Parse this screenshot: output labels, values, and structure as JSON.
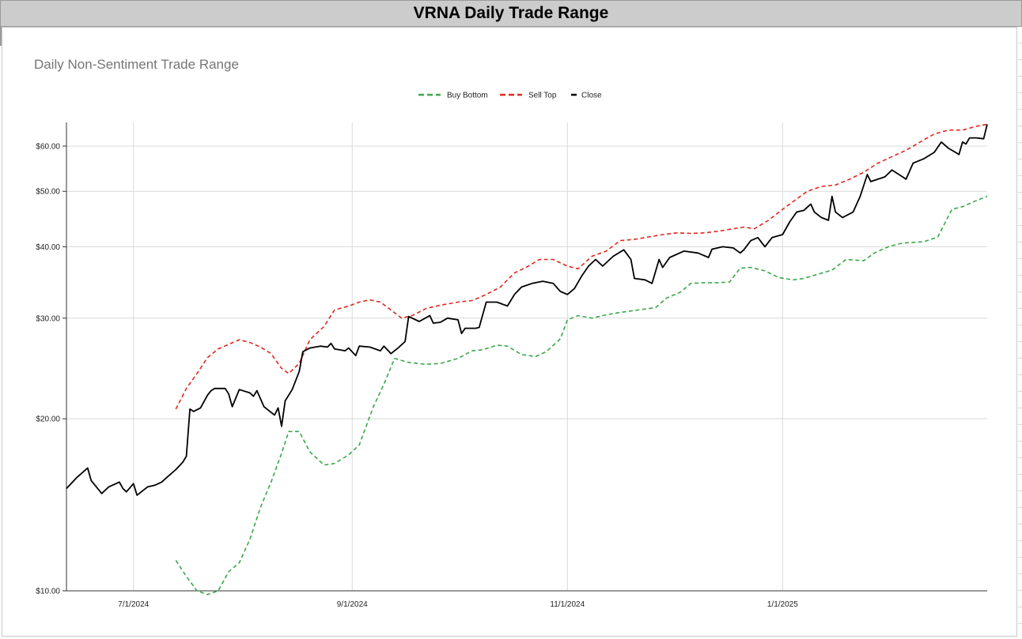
{
  "sheet": {
    "title": "VRNA Daily Trade Range"
  },
  "chart_data": {
    "type": "line",
    "subtitle": "Daily Non-Sentiment Trade Range",
    "y_scale": "log",
    "ylim": [
      10,
      66
    ],
    "y_ticks": [
      {
        "value": 10,
        "label": "$10.00"
      },
      {
        "value": 20,
        "label": "$20.00"
      },
      {
        "value": 30,
        "label": "$30.00"
      },
      {
        "value": 40,
        "label": "$40.00"
      },
      {
        "value": 50,
        "label": "$50.00"
      },
      {
        "value": 60,
        "label": "$60.00"
      }
    ],
    "x_range": [
      "2024-06-12",
      "2025-02-28"
    ],
    "x_ticks": [
      {
        "date": "2024-07-01",
        "label": "7/1/2024"
      },
      {
        "date": "2024-09-01",
        "label": "9/1/2024"
      },
      {
        "date": "2024-11-01",
        "label": "11/1/2024"
      },
      {
        "date": "2025-01-01",
        "label": "1/1/2025"
      }
    ],
    "grid": true,
    "legend_position": "top",
    "series": [
      {
        "name": "Buy Bottom",
        "color": "#3aa84a",
        "style": "dashed",
        "points": [
          [
            "2024-07-13",
            11.3
          ],
          [
            "2024-07-16",
            10.6
          ],
          [
            "2024-07-19",
            10.0
          ],
          [
            "2024-07-22",
            9.85
          ],
          [
            "2024-07-25",
            10.0
          ],
          [
            "2024-07-28",
            10.8
          ],
          [
            "2024-07-31",
            11.2
          ],
          [
            "2024-08-03",
            12.3
          ],
          [
            "2024-08-06",
            14.0
          ],
          [
            "2024-08-09",
            15.5
          ],
          [
            "2024-08-12",
            17.4
          ],
          [
            "2024-08-14",
            19.0
          ],
          [
            "2024-08-17",
            19.0
          ],
          [
            "2024-08-20",
            17.5
          ],
          [
            "2024-08-24",
            16.6
          ],
          [
            "2024-08-27",
            16.7
          ],
          [
            "2024-08-31",
            17.3
          ],
          [
            "2024-09-03",
            18.0
          ],
          [
            "2024-09-07",
            21.0
          ],
          [
            "2024-09-10",
            23.0
          ],
          [
            "2024-09-13",
            25.5
          ],
          [
            "2024-09-17",
            25.1
          ],
          [
            "2024-09-22",
            24.9
          ],
          [
            "2024-09-26",
            25.0
          ],
          [
            "2024-10-01",
            25.5
          ],
          [
            "2024-10-05",
            26.3
          ],
          [
            "2024-10-08",
            26.4
          ],
          [
            "2024-10-12",
            26.9
          ],
          [
            "2024-10-15",
            26.8
          ],
          [
            "2024-10-19",
            25.9
          ],
          [
            "2024-10-23",
            25.7
          ],
          [
            "2024-10-26",
            26.2
          ],
          [
            "2024-10-30",
            27.6
          ],
          [
            "2024-11-01",
            29.8
          ],
          [
            "2024-11-04",
            30.3
          ],
          [
            "2024-11-08",
            30.0
          ],
          [
            "2024-11-12",
            30.4
          ],
          [
            "2024-11-16",
            30.7
          ],
          [
            "2024-11-21",
            31.0
          ],
          [
            "2024-11-26",
            31.3
          ],
          [
            "2024-11-29",
            32.5
          ],
          [
            "2024-12-03",
            33.3
          ],
          [
            "2024-12-06",
            34.5
          ],
          [
            "2024-12-10",
            34.6
          ],
          [
            "2024-12-14",
            34.6
          ],
          [
            "2024-12-17",
            34.7
          ],
          [
            "2024-12-20",
            36.7
          ],
          [
            "2024-12-23",
            36.8
          ],
          [
            "2024-12-27",
            36.3
          ],
          [
            "2024-12-31",
            35.3
          ],
          [
            "2025-01-04",
            35.0
          ],
          [
            "2025-01-07",
            35.2
          ],
          [
            "2025-01-11",
            35.8
          ],
          [
            "2025-01-15",
            36.4
          ],
          [
            "2025-01-19",
            38.0
          ],
          [
            "2025-01-24",
            37.8
          ],
          [
            "2025-01-27",
            39.0
          ],
          [
            "2025-01-31",
            40.0
          ],
          [
            "2025-02-04",
            40.6
          ],
          [
            "2025-02-10",
            40.8
          ],
          [
            "2025-02-14",
            41.6
          ],
          [
            "2025-02-18",
            46.5
          ],
          [
            "2025-02-21",
            47.0
          ],
          [
            "2025-02-25",
            48.2
          ],
          [
            "2025-02-28",
            49.0
          ]
        ]
      },
      {
        "name": "Sell Top",
        "color": "#e0281f",
        "style": "dashed",
        "points": [
          [
            "2024-07-13",
            20.8
          ],
          [
            "2024-07-16",
            22.6
          ],
          [
            "2024-07-19",
            24.0
          ],
          [
            "2024-07-22",
            25.6
          ],
          [
            "2024-07-25",
            26.5
          ],
          [
            "2024-07-28",
            27.0
          ],
          [
            "2024-07-31",
            27.5
          ],
          [
            "2024-08-03",
            27.2
          ],
          [
            "2024-08-06",
            26.7
          ],
          [
            "2024-08-09",
            26.0
          ],
          [
            "2024-08-12",
            24.5
          ],
          [
            "2024-08-14",
            24.0
          ],
          [
            "2024-08-17",
            25.0
          ],
          [
            "2024-08-20",
            27.5
          ],
          [
            "2024-08-24",
            29.0
          ],
          [
            "2024-08-27",
            31.0
          ],
          [
            "2024-08-31",
            31.5
          ],
          [
            "2024-09-03",
            32.0
          ],
          [
            "2024-09-06",
            32.3
          ],
          [
            "2024-09-09",
            32.0
          ],
          [
            "2024-09-12",
            31.0
          ],
          [
            "2024-09-15",
            30.0
          ],
          [
            "2024-09-18",
            30.3
          ],
          [
            "2024-09-22",
            31.2
          ],
          [
            "2024-09-26",
            31.6
          ],
          [
            "2024-10-01",
            32.0
          ],
          [
            "2024-10-05",
            32.2
          ],
          [
            "2024-10-09",
            33.0
          ],
          [
            "2024-10-13",
            34.0
          ],
          [
            "2024-10-17",
            36.0
          ],
          [
            "2024-10-21",
            37.0
          ],
          [
            "2024-10-24",
            38.0
          ],
          [
            "2024-10-28",
            38.0
          ],
          [
            "2024-11-01",
            37.0
          ],
          [
            "2024-11-04",
            36.6
          ],
          [
            "2024-11-08",
            38.5
          ],
          [
            "2024-11-12",
            39.3
          ],
          [
            "2024-11-16",
            41.0
          ],
          [
            "2024-11-20",
            41.2
          ],
          [
            "2024-11-24",
            41.6
          ],
          [
            "2024-11-28",
            42.0
          ],
          [
            "2024-12-02",
            42.3
          ],
          [
            "2024-12-06",
            42.2
          ],
          [
            "2024-12-10",
            42.3
          ],
          [
            "2024-12-14",
            42.6
          ],
          [
            "2024-12-18",
            43.0
          ],
          [
            "2024-12-21",
            43.3
          ],
          [
            "2024-12-24",
            43.0
          ],
          [
            "2024-12-28",
            44.5
          ],
          [
            "2024-12-31",
            46.0
          ],
          [
            "2025-01-04",
            48.0
          ],
          [
            "2025-01-08",
            50.0
          ],
          [
            "2025-01-12",
            51.0
          ],
          [
            "2025-01-16",
            51.3
          ],
          [
            "2025-01-20",
            52.5
          ],
          [
            "2025-01-24",
            54.0
          ],
          [
            "2025-01-28",
            56.0
          ],
          [
            "2025-02-01",
            57.5
          ],
          [
            "2025-02-05",
            59.0
          ],
          [
            "2025-02-09",
            61.0
          ],
          [
            "2025-02-13",
            63.0
          ],
          [
            "2025-02-17",
            64.0
          ],
          [
            "2025-02-21",
            64.0
          ],
          [
            "2025-02-25",
            65.0
          ],
          [
            "2025-02-28",
            65.5
          ]
        ]
      },
      {
        "name": "Close",
        "color": "#000000",
        "style": "solid",
        "points": [
          [
            "2024-06-12",
            15.1
          ],
          [
            "2024-06-15",
            15.8
          ],
          [
            "2024-06-18",
            16.4
          ],
          [
            "2024-06-19",
            15.6
          ],
          [
            "2024-06-22",
            14.8
          ],
          [
            "2024-06-24",
            15.2
          ],
          [
            "2024-06-27",
            15.5
          ],
          [
            "2024-06-28",
            15.1
          ],
          [
            "2024-06-29",
            14.9
          ],
          [
            "2024-07-01",
            15.4
          ],
          [
            "2024-07-02",
            14.7
          ],
          [
            "2024-07-05",
            15.2
          ],
          [
            "2024-07-07",
            15.3
          ],
          [
            "2024-07-09",
            15.5
          ],
          [
            "2024-07-11",
            15.9
          ],
          [
            "2024-07-13",
            16.3
          ],
          [
            "2024-07-15",
            16.8
          ],
          [
            "2024-07-16",
            17.2
          ],
          [
            "2024-07-17",
            20.8
          ],
          [
            "2024-07-18",
            20.6
          ],
          [
            "2024-07-20",
            20.9
          ],
          [
            "2024-07-22",
            22.0
          ],
          [
            "2024-07-23",
            22.4
          ],
          [
            "2024-07-24",
            22.6
          ],
          [
            "2024-07-27",
            22.6
          ],
          [
            "2024-07-28",
            22.1
          ],
          [
            "2024-07-29",
            21.0
          ],
          [
            "2024-07-31",
            22.5
          ],
          [
            "2024-08-03",
            22.2
          ],
          [
            "2024-08-04",
            21.9
          ],
          [
            "2024-08-05",
            22.4
          ],
          [
            "2024-08-07",
            21.0
          ],
          [
            "2024-08-10",
            20.3
          ],
          [
            "2024-08-11",
            20.9
          ],
          [
            "2024-08-12",
            19.4
          ],
          [
            "2024-08-13",
            21.5
          ],
          [
            "2024-08-15",
            22.5
          ],
          [
            "2024-08-17",
            24.2
          ],
          [
            "2024-08-18",
            26.2
          ],
          [
            "2024-08-20",
            26.6
          ],
          [
            "2024-08-23",
            26.8
          ],
          [
            "2024-08-25",
            26.7
          ],
          [
            "2024-08-26",
            27.1
          ],
          [
            "2024-08-27",
            26.5
          ],
          [
            "2024-08-30",
            26.3
          ],
          [
            "2024-08-31",
            26.6
          ],
          [
            "2024-09-02",
            25.8
          ],
          [
            "2024-09-03",
            26.8
          ],
          [
            "2024-09-06",
            26.7
          ],
          [
            "2024-09-09",
            26.3
          ],
          [
            "2024-09-10",
            26.8
          ],
          [
            "2024-09-12",
            26.0
          ],
          [
            "2024-09-14",
            26.6
          ],
          [
            "2024-09-16",
            27.3
          ],
          [
            "2024-09-17",
            30.2
          ],
          [
            "2024-09-20",
            29.6
          ],
          [
            "2024-09-23",
            30.3
          ],
          [
            "2024-09-24",
            29.4
          ],
          [
            "2024-09-26",
            29.5
          ],
          [
            "2024-09-28",
            30.0
          ],
          [
            "2024-10-01",
            29.8
          ],
          [
            "2024-10-02",
            28.2
          ],
          [
            "2024-10-03",
            28.8
          ],
          [
            "2024-10-06",
            28.8
          ],
          [
            "2024-10-07",
            28.9
          ],
          [
            "2024-10-09",
            32.0
          ],
          [
            "2024-10-12",
            32.0
          ],
          [
            "2024-10-15",
            31.5
          ],
          [
            "2024-10-17",
            33.0
          ],
          [
            "2024-10-19",
            34.0
          ],
          [
            "2024-10-22",
            34.5
          ],
          [
            "2024-10-25",
            34.8
          ],
          [
            "2024-10-28",
            34.5
          ],
          [
            "2024-10-30",
            33.4
          ],
          [
            "2024-11-01",
            33.0
          ],
          [
            "2024-11-03",
            33.8
          ],
          [
            "2024-11-05",
            35.5
          ],
          [
            "2024-11-07",
            37.0
          ],
          [
            "2024-11-09",
            38.0
          ],
          [
            "2024-11-11",
            37.0
          ],
          [
            "2024-11-14",
            38.5
          ],
          [
            "2024-11-17",
            39.5
          ],
          [
            "2024-11-19",
            38.0
          ],
          [
            "2024-11-20",
            35.2
          ],
          [
            "2024-11-23",
            35.0
          ],
          [
            "2024-11-25",
            34.5
          ],
          [
            "2024-11-27",
            38.0
          ],
          [
            "2024-11-28",
            36.8
          ],
          [
            "2024-11-30",
            38.3
          ],
          [
            "2024-12-04",
            39.3
          ],
          [
            "2024-12-08",
            39.0
          ],
          [
            "2024-12-11",
            38.3
          ],
          [
            "2024-12-12",
            39.6
          ],
          [
            "2024-12-15",
            40.0
          ],
          [
            "2024-12-18",
            39.8
          ],
          [
            "2024-12-20",
            39.0
          ],
          [
            "2024-12-21",
            39.5
          ],
          [
            "2024-12-23",
            41.0
          ],
          [
            "2024-12-25",
            41.5
          ],
          [
            "2024-12-27",
            40.0
          ],
          [
            "2024-12-29",
            41.5
          ],
          [
            "2025-01-01",
            42.0
          ],
          [
            "2025-01-03",
            44.2
          ],
          [
            "2025-01-05",
            46.0
          ],
          [
            "2025-01-07",
            46.3
          ],
          [
            "2025-01-09",
            47.5
          ],
          [
            "2025-01-10",
            46.0
          ],
          [
            "2025-01-12",
            45.0
          ],
          [
            "2025-01-14",
            44.5
          ],
          [
            "2025-01-15",
            49.0
          ],
          [
            "2025-01-16",
            46.0
          ],
          [
            "2025-01-18",
            45.0
          ],
          [
            "2025-01-21",
            46.0
          ],
          [
            "2025-01-23",
            49.0
          ],
          [
            "2025-01-25",
            53.5
          ],
          [
            "2025-01-26",
            52.0
          ],
          [
            "2025-01-30",
            53.0
          ],
          [
            "2025-02-01",
            54.5
          ],
          [
            "2025-02-04",
            53.0
          ],
          [
            "2025-02-05",
            52.5
          ],
          [
            "2025-02-07",
            56.0
          ],
          [
            "2025-02-10",
            57.0
          ],
          [
            "2025-02-13",
            58.5
          ],
          [
            "2025-02-15",
            61.0
          ],
          [
            "2025-02-17",
            59.5
          ],
          [
            "2025-02-19",
            58.5
          ],
          [
            "2025-02-20",
            58.0
          ],
          [
            "2025-02-21",
            61.0
          ],
          [
            "2025-02-22",
            60.5
          ],
          [
            "2025-02-23",
            62.0
          ],
          [
            "2025-02-25",
            62.0
          ],
          [
            "2025-02-27",
            61.8
          ],
          [
            "2025-02-28",
            65.5
          ]
        ]
      }
    ]
  }
}
